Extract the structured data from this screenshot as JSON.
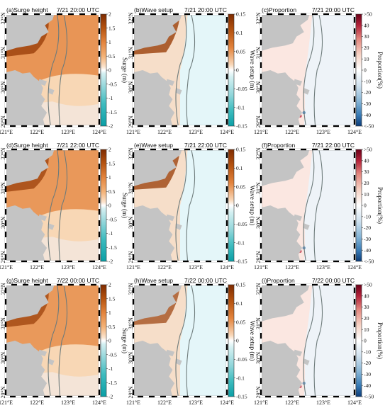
{
  "rows": [
    {
      "panels": [
        {
          "letter": "(a)",
          "title": "Surge height",
          "time": "7/21 20:00 UTC",
          "type": "surge",
          "intensity": 1.0
        },
        {
          "letter": "(b)",
          "title": "Wave setup",
          "time": "7/21 20:00 UTC",
          "type": "wave",
          "intensity": 1.0
        },
        {
          "letter": "(c)",
          "title": "Proportion",
          "time": "7/21 20:00 UTC",
          "type": "prop",
          "intensity": 1.0
        }
      ]
    },
    {
      "panels": [
        {
          "letter": "(d)",
          "title": "Surge height",
          "time": "7/21 22:00 UTC",
          "type": "surge",
          "intensity": 0.9
        },
        {
          "letter": "(e)",
          "title": "Wave setup",
          "time": "7/21 22:00 UTC",
          "type": "wave",
          "intensity": 0.95
        },
        {
          "letter": "(f)",
          "title": "Proportion",
          "time": "7/21 22:00 UTC",
          "type": "prop",
          "intensity": 0.8
        }
      ]
    },
    {
      "panels": [
        {
          "letter": "(g)",
          "title": "Surge height",
          "time": "7/22 00:00 UTC",
          "type": "surge",
          "intensity": 0.85
        },
        {
          "letter": "(h)",
          "title": "Wave setup",
          "time": "7/22 00:00 UTC",
          "type": "wave",
          "intensity": 0.8
        },
        {
          "letter": "(i)",
          "title": "Proportion",
          "time": "7/22 00:00 UTC",
          "type": "prop",
          "intensity": 0.7
        }
      ]
    }
  ],
  "lon_ticks": [
    "121°E",
    "122°E",
    "123°E",
    "124°E"
  ],
  "lat_ticks": [
    "32°N",
    "31°N",
    "30°N",
    "29°N"
  ],
  "colorbars": {
    "surge": {
      "label": "Surge (m)",
      "ticks": [
        "2",
        "1.5",
        "1",
        "0.5",
        "0",
        "-0.5",
        "-1",
        "-1.5",
        "-2"
      ],
      "min": -2,
      "max": 2
    },
    "wave": {
      "label": "Wave setup (m)",
      "ticks": [
        "0.15",
        "0.1",
        "0.05",
        "0",
        "-0.05",
        "-0.1",
        "-0.15"
      ],
      "min": -0.15,
      "max": 0.15
    },
    "prop": {
      "label": "Proportion(%)",
      "ticks": [
        ">50",
        "40",
        "30",
        "20",
        "10",
        "0",
        "-10",
        "-20",
        "-30",
        "-40",
        "<-50"
      ],
      "min": -50,
      "max": 50
    }
  },
  "colors": {
    "land": "#c4c4c4",
    "contour": "#6e7b7b",
    "surge_high": "#9a3f0a",
    "surge_mid": "#e58a45",
    "surge_low": "#f6cfa8",
    "wave_sea": "#e4f6f9",
    "prop_sea": "#eef3f8"
  }
}
